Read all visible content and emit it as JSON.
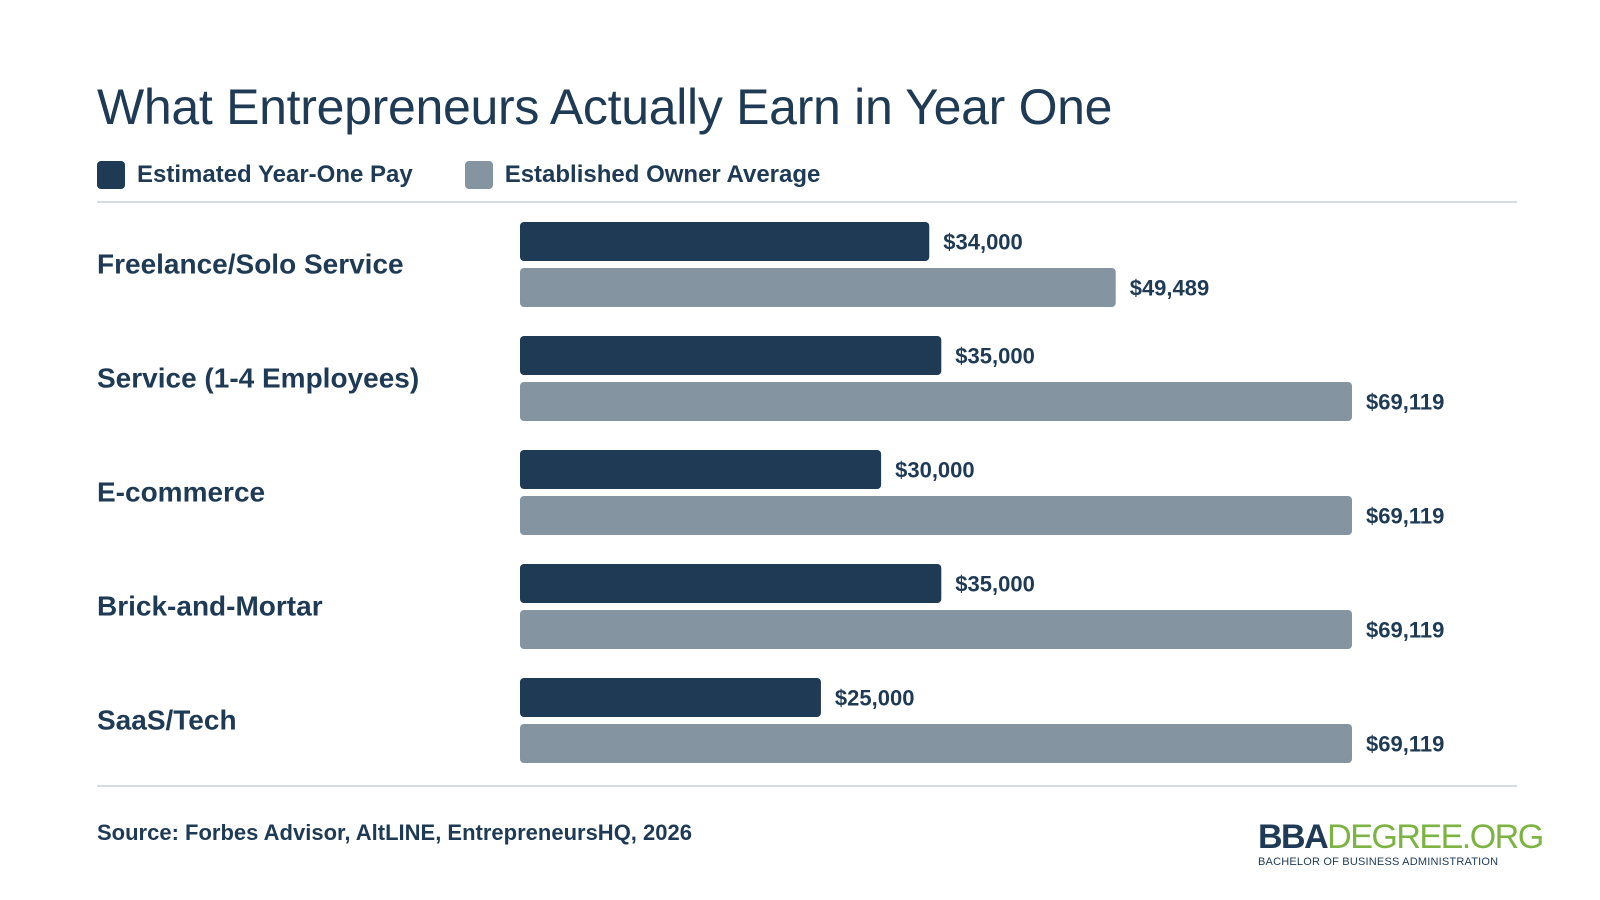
{
  "colors": {
    "primary": "#1e3a55",
    "secondary": "#8594a1",
    "logo_accent": "#7cb342"
  },
  "legend": [
    {
      "label": "Estimated Year-One Pay",
      "color": "#1e3a55"
    },
    {
      "label": "Established Owner Average",
      "color": "#8594a1"
    }
  ],
  "source": "Source: Forbes Advisor, AltLINE, EntrepreneursHQ, 2026",
  "logo": {
    "part1": "BBA",
    "part2": "DEGREE.ORG",
    "tagline": "BACHELOR OF BUSINESS ADMINISTRATION"
  },
  "chart_data": {
    "type": "bar",
    "orientation": "horizontal",
    "title": "What Entrepreneurs Actually Earn in Year One",
    "categories": [
      "Freelance/Solo Service",
      "Service (1-4 Employees)",
      "E-commerce",
      "Brick-and-Mortar",
      "SaaS/Tech"
    ],
    "series": [
      {
        "name": "Estimated Year-One Pay",
        "values": [
          34000,
          35000,
          30000,
          35000,
          25000
        ],
        "labels": [
          "$34,000",
          "$35,000",
          "$30,000",
          "$35,000",
          "$25,000"
        ]
      },
      {
        "name": "Established Owner Average",
        "values": [
          49489,
          69119,
          69119,
          69119,
          69119
        ],
        "labels": [
          "$49,489",
          "$69,119",
          "$69,119",
          "$69,119",
          "$69,119"
        ]
      }
    ],
    "xlim": [
      0,
      69119
    ],
    "grid": false,
    "legend_position": "top-left"
  }
}
